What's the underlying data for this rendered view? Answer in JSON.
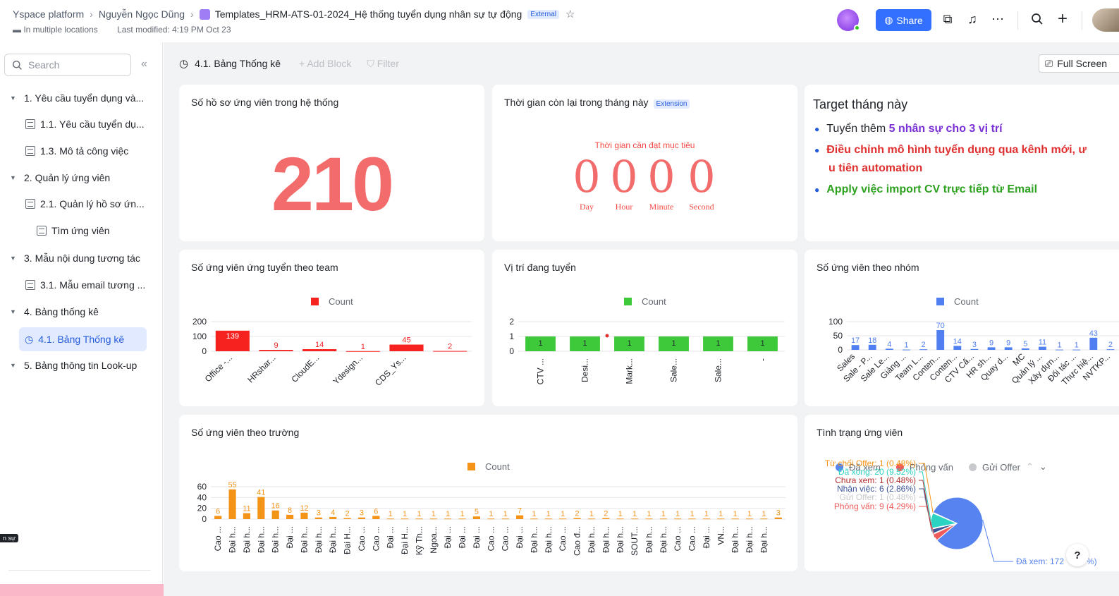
{
  "header": {
    "crumbs": [
      "Yspace platform",
      "Nguyễn Ngọc Dũng",
      "Templates_HRM-ATS-01-2024_Hệ thống tuyển dụng nhân sự tự động"
    ],
    "external_badge": "External",
    "location": "In multiple locations",
    "modified": "Last modified: 4:19 PM Oct 23",
    "share_label": "Share"
  },
  "sidebar": {
    "search_placeholder": "Search",
    "items": [
      {
        "label": "1. Yêu cầu tuyển dụng và...",
        "level": 0
      },
      {
        "label": "1.1. Yêu cầu tuyển dụ...",
        "level": 1
      },
      {
        "label": "1.3. Mô tả công việc",
        "level": 1
      },
      {
        "label": "2. Quản lý ứng viên",
        "level": 0
      },
      {
        "label": "2.1. Quản lý hồ sơ ứn...",
        "level": 1
      },
      {
        "label": "Tìm ứng viên",
        "level": 2
      },
      {
        "label": "3. Mẫu nội dung tương tác",
        "level": 0
      },
      {
        "label": "3.1. Mẫu email tương ...",
        "level": 1
      },
      {
        "label": "4. Bảng thống kê",
        "level": 0
      },
      {
        "label": "4.1. Bảng Thống kê",
        "level": 1,
        "active": true
      },
      {
        "label": "5. Bảng thông tin Look-up",
        "level": 0
      }
    ],
    "tooltip": "n sự"
  },
  "toolbar": {
    "view_title": "4.1. Bảng Thống kê",
    "add_block": "+ Add Block",
    "filter": "Filter",
    "fullscreen": "Full Screen"
  },
  "cards": {
    "total": {
      "title": "Số hồ sơ ứng viên trong hệ thống",
      "value": "210"
    },
    "countdown": {
      "title": "Thời gian còn lại trong tháng này",
      "badge": "Extension",
      "label": "Thời gian cần đạt mục tiêu",
      "units": [
        {
          "value": "0",
          "unit": "Day"
        },
        {
          "value": "0",
          "unit": "Hour"
        },
        {
          "value": "0",
          "unit": "Minute"
        },
        {
          "value": "0",
          "unit": "Second"
        }
      ]
    },
    "target": {
      "title": "Target tháng này",
      "lines": [
        {
          "prefix": "Tuyển thêm ",
          "text": "5 nhân sự cho 3 vị trí",
          "color": "#7b2fd6"
        },
        {
          "prefix": "",
          "text": "Điều chỉnh mô hình tuyển dụng qua kênh mới, ư",
          "color": "#e02f2f"
        },
        {
          "prefix": "",
          "text": "u tiên automation",
          "color": "#e02f2f"
        },
        {
          "prefix": "",
          "text": "Apply việc import CV trực tiếp từ Email",
          "color": "#2ea121"
        }
      ]
    },
    "team_title": "Số ứng viên ứng tuyển theo team",
    "position_title": "Vị trí đang tuyển",
    "group_title": "Số ứng viên theo nhóm",
    "school_title": "Số ứng viên theo trường",
    "status_title": "Tình trạng ứng viên",
    "count_legend": "Count",
    "status_legend": [
      "Đã xem",
      "Phỏng vấn",
      "Gửi Offer"
    ]
  },
  "chart_data": [
    {
      "type": "bar",
      "title": "Số ứng viên ứng tuyển theo team",
      "categories": [
        "Office -...",
        "HRshar...",
        "CloudE...",
        "Ydesign...",
        "CDS_Ys...",
        ""
      ],
      "series": [
        {
          "name": "Count",
          "values": [
            139,
            9,
            14,
            1,
            45,
            2
          ]
        }
      ],
      "ylim": [
        0,
        200
      ],
      "yticks": [
        0,
        100,
        200
      ],
      "color": "#f5221f"
    },
    {
      "type": "bar",
      "title": "Vị trí đang tuyển",
      "categories": [
        "CTV ...",
        "Desi...",
        "Mark...",
        "Sale...",
        "Sale...",
        "-"
      ],
      "series": [
        {
          "name": "Count",
          "values": [
            1,
            1,
            1,
            1,
            1,
            1
          ]
        }
      ],
      "ylim": [
        0,
        2
      ],
      "yticks": [
        0,
        1,
        2
      ],
      "color": "#3ec93a"
    },
    {
      "type": "bar",
      "title": "Số ứng viên theo nhóm",
      "categories": [
        "Sales",
        "Sale - P...",
        "Sale Le...",
        "Giảng ...",
        "Team L...",
        "Conten...",
        "Conten...",
        "CTV Cấ...",
        "HR sh...",
        "Quay d...",
        "MC",
        "Quản lý ...",
        "Xây dựn...",
        "Đối tác ...",
        "Thực hiệ...",
        "NVTKP..."
      ],
      "series": [
        {
          "name": "Count",
          "values": [
            17,
            18,
            4,
            1,
            2,
            70,
            14,
            3,
            9,
            9,
            5,
            11,
            1,
            1,
            43,
            2
          ]
        }
      ],
      "ylim": [
        0,
        100
      ],
      "yticks": [
        0,
        50,
        100
      ],
      "color": "#4f7ff0"
    },
    {
      "type": "bar",
      "title": "Số ứng viên theo trường",
      "categories": [
        "Cao ...",
        "Đại h...",
        "Đại h...",
        "Đại h...",
        "Đại h...",
        "Đại ...",
        "Đại h...",
        "Đại h...",
        "Đại h...",
        "Đại H...",
        "Cao ...",
        "Cao ...",
        "Đại ...",
        "Đại H...",
        "Kỹ Th...",
        "Ngoa...",
        "Đại ...",
        "Đại ...",
        "Đại ...",
        "Cao ...",
        "Cao ...",
        "Đại ...",
        "Đại h...",
        "Đại h...",
        "Cao ...",
        "Cao đ...",
        "Đại h...",
        "Đại h...",
        "Đại h...",
        "SOUT...",
        "Đại h...",
        "Đại h...",
        "Cao ...",
        "Cao ...",
        "Đại ...",
        "VN...",
        "Đại h...",
        "Đại h...",
        "Đại h...",
        ""
      ],
      "series": [
        {
          "name": "Count",
          "values": [
            6,
            55,
            11,
            41,
            16,
            8,
            12,
            3,
            4,
            2,
            3,
            6,
            1,
            1,
            1,
            1,
            1,
            1,
            5,
            1,
            1,
            7,
            1,
            1,
            1,
            2,
            1,
            2,
            1,
            1,
            1,
            1,
            1,
            1,
            1,
            1,
            1,
            1,
            1,
            3
          ]
        }
      ],
      "ylim": [
        0,
        60
      ],
      "yticks": [
        0,
        20,
        40,
        60
      ],
      "color": "#f39419"
    },
    {
      "type": "pie",
      "title": "Tình trạng ứng viên",
      "slices": [
        {
          "label": "Đã xem: 172",
          "value": 172,
          "color": "#5683f0"
        },
        {
          "label": "Phỏng vấn: 9 (4.29%)",
          "value": 9,
          "color": "#f05a5a"
        },
        {
          "label": "Gửi Offer: 1 (0.48%)",
          "value": 1,
          "color": "#c8c9cc"
        },
        {
          "label": "Nhận việc: 6 (2.86%)",
          "value": 6,
          "color": "#3c5596"
        },
        {
          "label": "Chưa xem: 1 (0.48%)",
          "value": 1,
          "color": "#b22d2d"
        },
        {
          "label": "Đã xong: 20 (9.52%)",
          "value": 20,
          "color": "#2bd3c2"
        },
        {
          "label": "Từ chối Offer: 1 (0.48%)",
          "value": 1,
          "color": "#f39419"
        }
      ],
      "tail_text": "%)"
    }
  ]
}
